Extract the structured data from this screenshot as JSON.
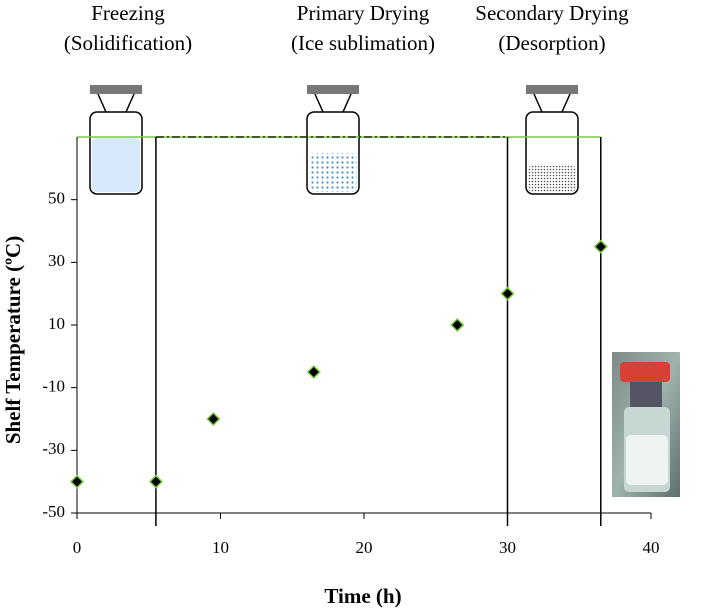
{
  "chart_data": {
    "type": "scatter",
    "x_label": "Time (h)",
    "y_label": "Shelf Temperature (ºC)",
    "x": [
      0,
      5.5,
      9.5,
      16.5,
      26.5,
      30,
      36.5
    ],
    "series": [
      {
        "color": "#000000",
        "edge_color": "#7ac943",
        "values": [
          -40,
          -40,
          -20,
          -5,
          10,
          20,
          35
        ]
      }
    ],
    "phases": [
      {
        "name": "Freezing",
        "detail": "(Solidification)"
      },
      {
        "name": "Primary Drying",
        "detail": "(Ice sublimation)"
      },
      {
        "name": "Secondary Drying",
        "detail": "(Desorption)"
      }
    ],
    "phase_boundaries": [
      5.5,
      30,
      36.5
    ],
    "xlim": [
      0,
      40
    ],
    "xticks": [
      0,
      10,
      20,
      30,
      40
    ],
    "ylim": [
      -50,
      70
    ],
    "yticks": [
      -50,
      -30,
      -10,
      10,
      30,
      50
    ]
  }
}
